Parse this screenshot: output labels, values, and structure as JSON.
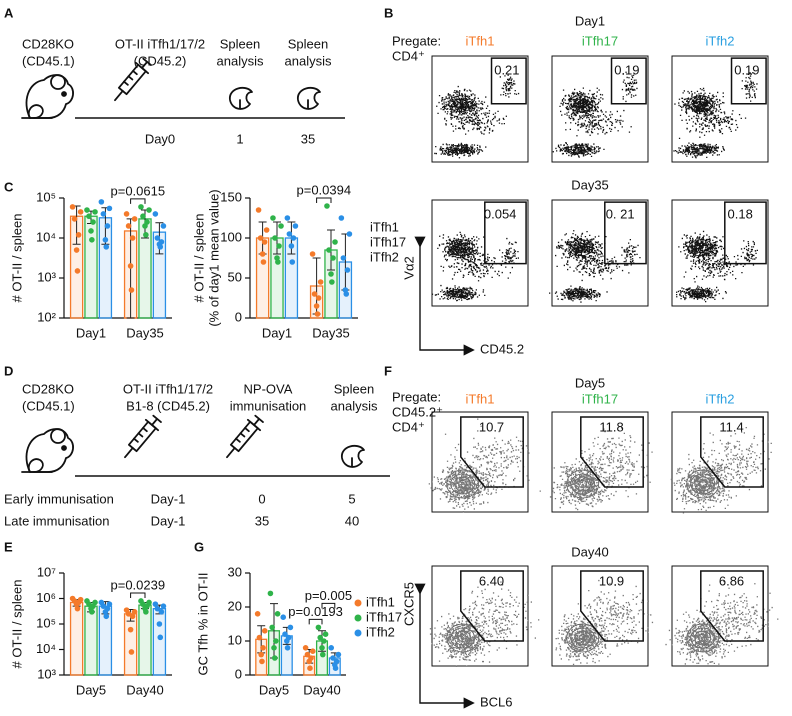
{
  "panel_labels": [
    "A",
    "B",
    "C",
    "D",
    "E",
    "F",
    "G"
  ],
  "schematic_a": {
    "host": [
      "CD28KO",
      "(CD45.1)"
    ],
    "transfer": [
      "OT-II iTfh1/17/2",
      "(CD45.2)"
    ],
    "analysis_1": [
      "Spleen",
      "analysis"
    ],
    "analysis_2": [
      "Spleen",
      "analysis"
    ],
    "timeline": [
      "Day0",
      "1",
      "35"
    ]
  },
  "schematic_d": {
    "host": [
      "CD28KO",
      "(CD45.1)"
    ],
    "transfer": [
      "OT-II iTfh1/17/2",
      "B1-8 (CD45.2)"
    ],
    "immunisation": [
      "NP-OVA",
      "immunisation"
    ],
    "analysis": [
      "Spleen",
      "analysis"
    ],
    "schedule": [
      [
        "Early immunisation",
        "Day-1",
        "0",
        "5"
      ],
      [
        "Late immunisation",
        "Day-1",
        "35",
        "40"
      ]
    ]
  },
  "flow_b": {
    "pregate": [
      "Pregate:",
      "CD4⁺"
    ],
    "columns": [
      "iTfh1",
      "iTfh17",
      "iTfh2"
    ],
    "column_colors": [
      "#f47a2a",
      "#2fb34a",
      "#2a9fe0"
    ],
    "rows": [
      {
        "title": "Day1",
        "gates": [
          "0.21",
          "0.19",
          "0.19"
        ]
      },
      {
        "title": "Day35",
        "gates": [
          "0.054",
          "0. 21",
          "0.18"
        ]
      }
    ],
    "y_axis": "Vα2",
    "x_axis": "CD45.2"
  },
  "flow_f": {
    "pregate": [
      "Pregate:",
      "CD45.2⁺",
      "CD4⁺"
    ],
    "columns": [
      "iTfh1",
      "iTfh17",
      "iTfh2"
    ],
    "column_colors": [
      "#f47a2a",
      "#2fb34a",
      "#2a9fe0"
    ],
    "rows": [
      {
        "title": "Day5",
        "gates": [
          "10.7",
          "11.8",
          "11.4"
        ]
      },
      {
        "title": "Day40",
        "gates": [
          "6.40",
          "10.9",
          "6.86"
        ]
      }
    ],
    "y_axis": "CXCR5",
    "x_axis": "BCL6"
  },
  "chart_data": [
    {
      "type": "bar",
      "ylabel": [
        "# OT-II / spleen"
      ],
      "categories": [
        "Day1",
        "Day35"
      ],
      "log": true,
      "ylim": [
        100,
        100000
      ],
      "yticks": [
        {
          "value": 100,
          "label": "10²"
        },
        {
          "value": 1000,
          "label": "10³"
        },
        {
          "value": 10000,
          "label": "10⁴"
        },
        {
          "value": 100000,
          "label": "10⁵"
        }
      ],
      "annotations": [
        "p=0.0615"
      ],
      "series": [
        {
          "color": "#f47a2a",
          "values": [
            35000,
            15000
          ],
          "errors": [
            28000,
            15000
          ],
          "points": [
            [
              60000,
              45000,
              30000,
              12000,
              5000,
              1500
            ],
            [
              40000,
              30000,
              20000,
              10000,
              2000,
              500
            ]
          ]
        },
        {
          "color": "#2fb34a",
          "values": [
            35000,
            30000
          ],
          "errors": [
            12000,
            20000
          ],
          "points": [
            [
              50000,
              45000,
              35000,
              25000,
              15000,
              9000
            ],
            [
              60000,
              50000,
              35000,
              25000,
              20000,
              12000
            ]
          ]
        },
        {
          "color": "#2a8fe6",
          "values": [
            32000,
            14000
          ],
          "errors": [
            25000,
            10000
          ],
          "points": [
            [
              80000,
              55000,
              40000,
              20000,
              9000,
              6000
            ],
            [
              40000,
              20000,
              10000,
              8000,
              7000,
              6000
            ]
          ]
        }
      ]
    },
    {
      "type": "bar",
      "ylabel": [
        "# OT-II / spleen",
        "(% of day1 mean value)"
      ],
      "categories": [
        "Day1",
        "Day35"
      ],
      "log": false,
      "ylim": [
        0,
        150
      ],
      "yticks": [
        0,
        50,
        100,
        150
      ],
      "annotations": [
        "p=0.0394"
      ],
      "legend": "right",
      "legend_style": "text",
      "series": [
        {
          "name": "iTfh1",
          "color": "#f47a2a",
          "values": [
            100,
            40
          ],
          "errors": [
            20,
            35
          ],
          "points": [
            [
              135,
              110,
              100,
              95,
              80,
              70
            ],
            [
              80,
              45,
              30,
              25,
              15,
              5
            ]
          ]
        },
        {
          "name": "iTfh17",
          "color": "#2fb34a",
          "values": [
            100,
            85
          ],
          "errors": [
            20,
            25
          ],
          "points": [
            [
              125,
              115,
              100,
              90,
              75,
              70
            ],
            [
              140,
              95,
              85,
              75,
              55,
              45
            ]
          ]
        },
        {
          "name": "iTfh2",
          "color": "#2a8fe6",
          "values": [
            100,
            70
          ],
          "errors": [
            20,
            35
          ],
          "points": [
            [
              125,
              115,
              105,
              100,
              90,
              70
            ],
            [
              125,
              105,
              75,
              60,
              35,
              30
            ]
          ]
        }
      ]
    },
    {
      "type": "bar",
      "ylabel": [
        "# OT-II / spleen"
      ],
      "categories": [
        "Day5",
        "Day40"
      ],
      "log": true,
      "ylim": [
        1000,
        10000000
      ],
      "yticks": [
        {
          "value": 1000,
          "label": "10³"
        },
        {
          "value": 10000,
          "label": "10⁴"
        },
        {
          "value": 100000,
          "label": "10⁵"
        },
        {
          "value": 1000000,
          "label": "10⁶"
        },
        {
          "value": 10000000,
          "label": "10⁷"
        }
      ],
      "annotations": [
        "p=0.0239"
      ],
      "series": [
        {
          "color": "#f47a2a",
          "values": [
            700000,
            250000
          ],
          "errors": [
            200000,
            120000
          ],
          "points": [
            [
              1000000,
              900000,
              800000,
              700000,
              600000,
              400000
            ],
            [
              350000,
              300000,
              250000,
              200000,
              60000,
              8000
            ]
          ]
        },
        {
          "color": "#2fb34a",
          "values": [
            500000,
            550000
          ],
          "errors": [
            200000,
            150000
          ],
          "points": [
            [
              800000,
              700000,
              600000,
              500000,
              400000,
              300000
            ],
            [
              800000,
              700000,
              600000,
              500000,
              400000,
              300000
            ]
          ]
        },
        {
          "color": "#2a8fe6",
          "values": [
            500000,
            400000
          ],
          "errors": [
            250000,
            150000
          ],
          "points": [
            [
              700000,
              600000,
              500000,
              400000,
              300000,
              200000
            ],
            [
              600000,
              500000,
              400000,
              300000,
              100000,
              30000
            ]
          ]
        }
      ]
    },
    {
      "type": "bar",
      "ylabel": [
        "GC Tfh % in OT-II"
      ],
      "categories": [
        "Day5",
        "Day40"
      ],
      "log": false,
      "ylim": [
        0,
        30
      ],
      "yticks": [
        0,
        10,
        20,
        30
      ],
      "annotations": [
        "p=0.0193",
        "p=0.005"
      ],
      "legend": "right",
      "legend_style": "marker",
      "series": [
        {
          "name": "iTfh1",
          "color": "#f47a2a",
          "values": [
            10.5,
            5.5
          ],
          "errors": [
            4,
            2
          ],
          "points": [
            [
              18,
              13,
              11,
              8,
              6,
              4
            ],
            [
              8,
              7,
              6,
              5,
              4,
              2
            ]
          ]
        },
        {
          "name": "iTfh17",
          "color": "#2fb34a",
          "values": [
            13,
            10
          ],
          "errors": [
            8,
            3
          ],
          "points": [
            [
              24,
              18,
              14,
              10,
              8,
              5
            ],
            [
              14,
              12,
              11,
              10,
              8,
              6
            ]
          ]
        },
        {
          "name": "iTfh2",
          "color": "#2a8fe6",
          "values": [
            11.5,
            5
          ],
          "errors": [
            2.5,
            1.5
          ],
          "points": [
            [
              17,
              14,
              12,
              11,
              10,
              8
            ],
            [
              8,
              6,
              5,
              4,
              3,
              2
            ]
          ]
        }
      ]
    }
  ]
}
